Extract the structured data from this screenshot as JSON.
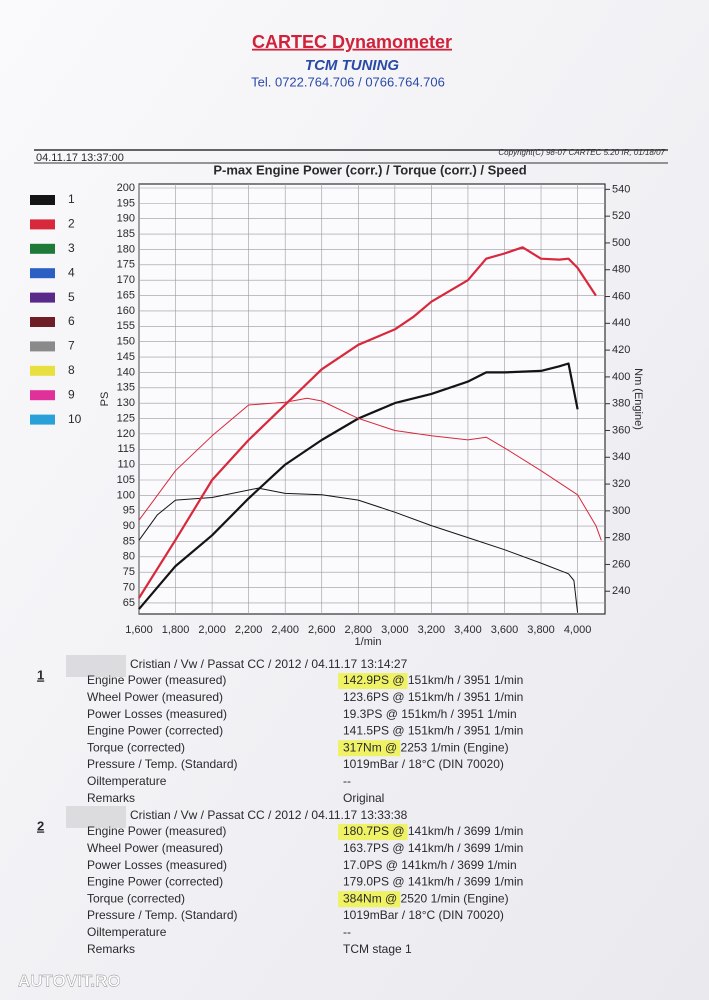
{
  "header": {
    "title": "CARTEC Dynamometer",
    "subtitle": "TCM TUNING",
    "phone": "Tel. 0722.764.706 / 0766.764.706"
  },
  "report": {
    "date": "04.11.17 13:37:00",
    "copyright": "Copyright(C) 98-07 CARTEC 5.20 IR, 01/18/07"
  },
  "chart_data": {
    "type": "line",
    "title": "P-max Engine Power (corr.) / Torque (corr.) / Speed",
    "xlabel": "1/min",
    "ylabel": "PS",
    "y2label": "Nm (Engine)",
    "xlim": [
      1600,
      4150
    ],
    "ylim": [
      61.4,
      201.3
    ],
    "y2lim": [
      223,
      544
    ],
    "xticks": [
      {
        "value": 1600,
        "label": "1,600"
      },
      {
        "value": 1800,
        "label": "1,800"
      },
      {
        "value": 2000,
        "label": "2,000"
      },
      {
        "value": 2200,
        "label": "2,200"
      },
      {
        "value": 2400,
        "label": "2,400"
      },
      {
        "value": 2600,
        "label": "2,600"
      },
      {
        "value": 2800,
        "label": "2,800"
      },
      {
        "value": 3000,
        "label": "3,000"
      },
      {
        "value": 3200,
        "label": "3,200"
      },
      {
        "value": 3400,
        "label": "3,400"
      },
      {
        "value": 3600,
        "label": "3,600"
      },
      {
        "value": 3800,
        "label": "3,800"
      },
      {
        "value": 4000,
        "label": "4,000"
      }
    ],
    "yticks": [
      65,
      70,
      75,
      80,
      85,
      90,
      95,
      100,
      105,
      110,
      115,
      120,
      125,
      130,
      135,
      140,
      145,
      150,
      155,
      160,
      165,
      170,
      175,
      180,
      185,
      190,
      195,
      200
    ],
    "y2ticks": [
      240,
      260,
      280,
      300,
      320,
      340,
      360,
      380,
      400,
      420,
      440,
      460,
      480,
      500,
      520,
      540
    ],
    "grid": true,
    "legend": [
      {
        "label": "1",
        "color": "#141414"
      },
      {
        "label": "2",
        "color": "#d8283c"
      },
      {
        "label": "3",
        "color": "#1f7a3a"
      },
      {
        "label": "4",
        "color": "#2b5fc4"
      },
      {
        "label": "5",
        "color": "#5a2a8a"
      },
      {
        "label": "6",
        "color": "#6e1e24"
      },
      {
        "label": "7",
        "color": "#8a8a8a"
      },
      {
        "label": "8",
        "color": "#e8e040"
      },
      {
        "label": "9",
        "color": "#e0309a"
      },
      {
        "label": "10",
        "color": "#2aa0d8"
      }
    ],
    "series": [
      {
        "color": "#141414",
        "width": 2.2,
        "axis": "y",
        "x": [
          1600,
          1800,
          2000,
          2200,
          2400,
          2600,
          2800,
          3000,
          3200,
          3400,
          3500,
          3600,
          3800,
          3900,
          3950,
          4000
        ],
        "values": [
          63,
          77,
          87,
          99,
          110,
          118,
          125,
          130,
          133,
          137,
          140,
          140,
          140.5,
          142,
          142.9,
          128
        ]
      },
      {
        "color": "#141414",
        "width": 1,
        "axis": "y2",
        "x": [
          1600,
          1700,
          1800,
          2000,
          2253,
          2400,
          2600,
          2800,
          3000,
          3200,
          3400,
          3600,
          3800,
          3950,
          3980,
          4000
        ],
        "values": [
          278,
          297,
          308,
          310,
          317,
          313,
          312,
          308,
          299,
          289,
          280,
          271,
          261,
          253,
          248,
          224
        ]
      },
      {
        "color": "#d8283c",
        "width": 2.2,
        "axis": "y",
        "x": [
          1600,
          1800,
          2000,
          2200,
          2400,
          2600,
          2800,
          3000,
          3100,
          3200,
          3400,
          3500,
          3600,
          3699,
          3800,
          3900,
          3950,
          4000,
          4100
        ],
        "values": [
          66.6,
          85.5,
          105,
          118,
          129.5,
          141,
          149,
          154,
          158,
          163,
          170,
          177,
          178.7,
          180.7,
          177,
          176.7,
          177,
          174,
          165
        ]
      },
      {
        "color": "#d8283c",
        "width": 1,
        "axis": "y2",
        "x": [
          1600,
          1800,
          2000,
          2200,
          2400,
          2520,
          2600,
          2800,
          3000,
          3200,
          3400,
          3500,
          3600,
          3800,
          4000,
          4100,
          4130
        ],
        "values": [
          293,
          330,
          356,
          379,
          381,
          384,
          382,
          369,
          360,
          356,
          353,
          355,
          347,
          330,
          312,
          289,
          278
        ]
      }
    ]
  },
  "runs": [
    {
      "number": "1",
      "header": "Cristian / Vw / Passat CC / 2012 / 04.11.17 13:14:27",
      "rows": [
        {
          "label": "Engine Power (measured)",
          "value": "142.9PS @ 151km/h / 3951 1/min",
          "highlight": true
        },
        {
          "label": "Wheel Power (measured)",
          "value": "123.6PS @ 151km/h / 3951 1/min",
          "highlight": false
        },
        {
          "label": "Power Losses (measured)",
          "value": "19.3PS @ 151km/h / 3951 1/min",
          "highlight": false
        },
        {
          "label": "Engine Power (corrected)",
          "value": "141.5PS @ 151km/h / 3951 1/min",
          "highlight": false
        },
        {
          "label": "Torque (corrected)",
          "value": "317Nm @ 2253 1/min (Engine)",
          "highlight": true
        },
        {
          "label": "Pressure / Temp. (Standard)",
          "value": "1019mBar / 18°C   (DIN 70020)",
          "highlight": false
        },
        {
          "label": "Oiltemperature",
          "value": "--",
          "highlight": false
        },
        {
          "label": "Remarks",
          "value": "Original",
          "highlight": false
        }
      ]
    },
    {
      "number": "2",
      "header": "Cristian / Vw / Passat CC / 2012 / 04.11.17 13:33:38",
      "rows": [
        {
          "label": "Engine Power (measured)",
          "value": "180.7PS @ 141km/h / 3699 1/min",
          "highlight": true
        },
        {
          "label": "Wheel Power (measured)",
          "value": "163.7PS @ 141km/h / 3699 1/min",
          "highlight": false
        },
        {
          "label": "Power Losses (measured)",
          "value": "17.0PS @ 141km/h / 3699 1/min",
          "highlight": false
        },
        {
          "label": "Engine Power (corrected)",
          "value": "179.0PS @ 141km/h / 3699 1/min",
          "highlight": false
        },
        {
          "label": "Torque (corrected)",
          "value": "384Nm @ 2520 1/min (Engine)",
          "highlight": true
        },
        {
          "label": "Pressure / Temp. (Standard)",
          "value": "1019mBar / 18°C   (DIN 70020)",
          "highlight": false
        },
        {
          "label": "Oiltemperature",
          "value": "--",
          "highlight": false
        },
        {
          "label": "Remarks",
          "value": "TCM stage 1",
          "highlight": false
        }
      ]
    }
  ],
  "watermark": "AUTOVIT.RO"
}
